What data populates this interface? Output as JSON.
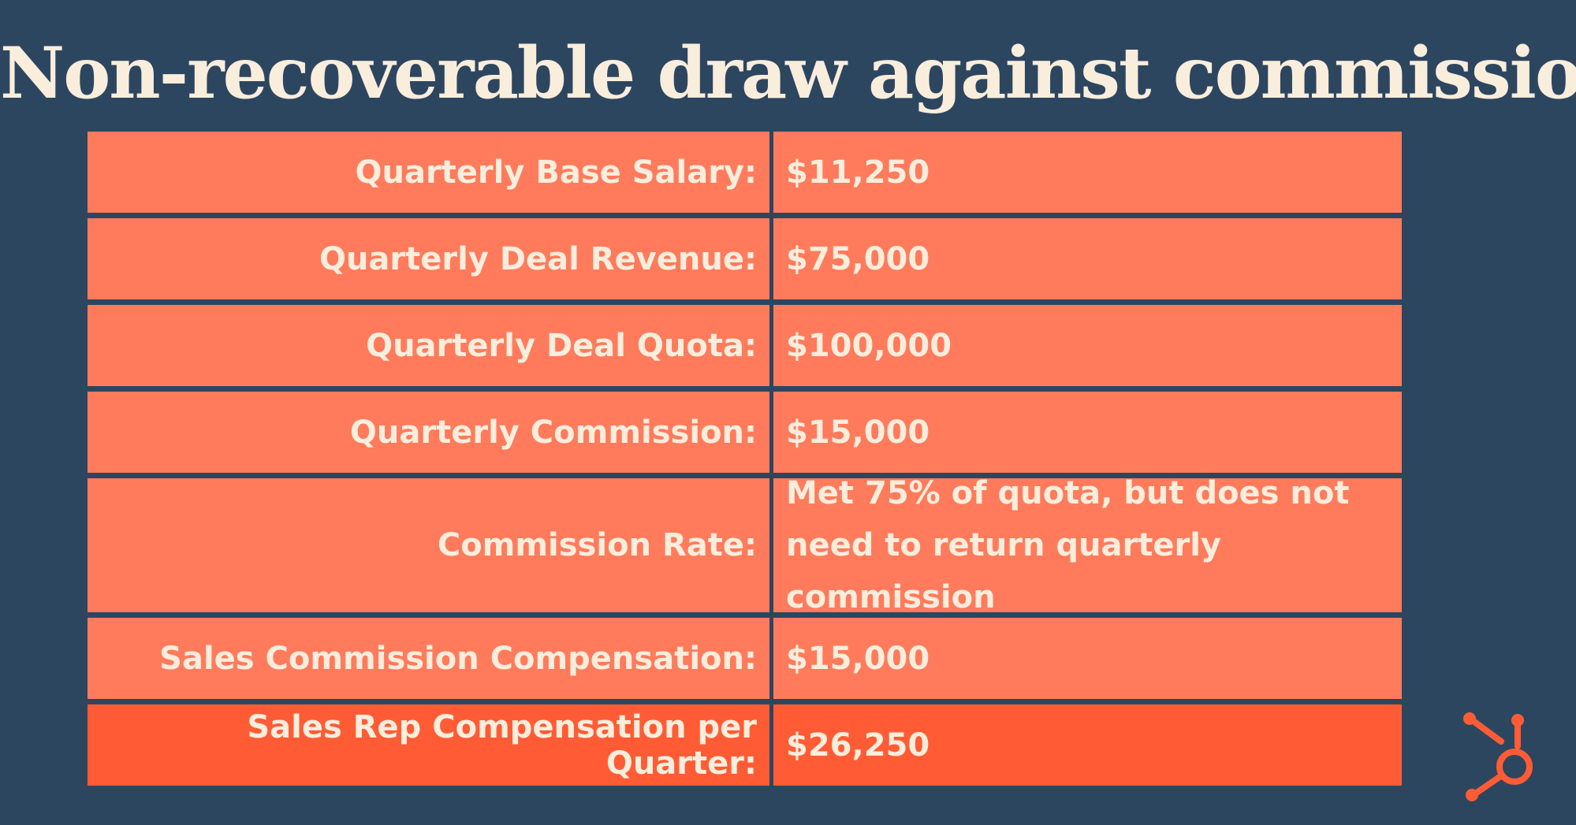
{
  "title": "Non-recoverable draw against commission",
  "colors": {
    "background": "#2d4660",
    "row": "#ff7b5c",
    "highlight_row": "#ff5c35",
    "text": "#f9eddc"
  },
  "rows": [
    {
      "label": "Quarterly Base Salary:",
      "value": "$11,250"
    },
    {
      "label": "Quarterly Deal Revenue:",
      "value": "$75,000"
    },
    {
      "label": "Quarterly Deal Quota:",
      "value": "$100,000"
    },
    {
      "label": "Quarterly Commission:",
      "value": "$15,000"
    },
    {
      "label": "Commission Rate:",
      "value": "Met 75% of quota, but does not need to return quarterly commission"
    },
    {
      "label": "Sales Commission Compensation:",
      "value": "$15,000"
    },
    {
      "label": "Sales Rep Compensation per Quarter:",
      "value": "$26,250"
    }
  ],
  "logo": {
    "icon": "hubspot-sprocket-icon"
  }
}
